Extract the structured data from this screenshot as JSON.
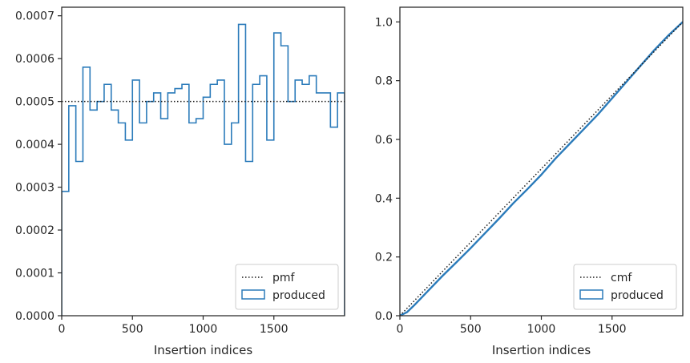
{
  "chart_data": [
    {
      "type": "line",
      "xlabel": "Insertion indices",
      "ylabel": "",
      "xlim": [
        0,
        2000
      ],
      "ylim": [
        0,
        0.00072
      ],
      "xticks": [
        0,
        500,
        1000,
        1500
      ],
      "xtick_labels": [
        "0",
        "500",
        "1000",
        "1500"
      ],
      "yticks": [
        0,
        0.0001,
        0.0002,
        0.0003,
        0.0004,
        0.0005,
        0.0006,
        0.0007
      ],
      "ytick_labels": [
        "0.0000",
        "0.0001",
        "0.0002",
        "0.0003",
        "0.0004",
        "0.0005",
        "0.0006",
        "0.0007"
      ],
      "grid": false,
      "legend": {
        "placement": "lower-right",
        "entries": [
          "pmf",
          "produced"
        ]
      },
      "series": [
        {
          "name": "pmf",
          "style": "dotted",
          "color": "#1a1a1a",
          "x": [
            0,
            2000
          ],
          "y": [
            0.0005,
            0.0005
          ]
        },
        {
          "name": "produced",
          "style": "step-histogram",
          "color": "#2b7bba",
          "bin_edges": [
            0,
            50,
            100,
            150,
            200,
            250,
            300,
            350,
            400,
            450,
            500,
            550,
            600,
            650,
            700,
            750,
            800,
            850,
            900,
            950,
            1000,
            1050,
            1100,
            1150,
            1200,
            1250,
            1300,
            1350,
            1400,
            1450,
            1500,
            1550,
            1600,
            1650,
            1700,
            1750,
            1800,
            1850,
            1900,
            1950,
            2000
          ],
          "values": [
            0.00029,
            0.00049,
            0.00036,
            0.00058,
            0.00048,
            0.0005,
            0.00054,
            0.00048,
            0.00045,
            0.00041,
            0.00055,
            0.00045,
            0.0005,
            0.00052,
            0.00046,
            0.00052,
            0.00053,
            0.00054,
            0.00045,
            0.00046,
            0.00051,
            0.00054,
            0.00055,
            0.0004,
            0.00045,
            0.00068,
            0.00036,
            0.00054,
            0.00056,
            0.00041,
            0.00066,
            0.00063,
            0.0005,
            0.00055,
            0.00054,
            0.00056,
            0.00052,
            0.00052,
            0.00044,
            0.00052
          ]
        }
      ]
    },
    {
      "type": "line",
      "xlabel": "Insertion indices",
      "ylabel": "",
      "xlim": [
        0,
        2000
      ],
      "ylim": [
        0,
        1.05
      ],
      "xticks": [
        0,
        500,
        1000,
        1500
      ],
      "xtick_labels": [
        "0",
        "500",
        "1000",
        "1500"
      ],
      "yticks": [
        0,
        0.2,
        0.4,
        0.6,
        0.8,
        1.0
      ],
      "ytick_labels": [
        "0.0",
        "0.2",
        "0.4",
        "0.6",
        "0.8",
        "1.0"
      ],
      "grid": false,
      "legend": {
        "placement": "lower-right",
        "entries": [
          "cmf",
          "produced"
        ]
      },
      "series": [
        {
          "name": "cmf",
          "style": "dotted",
          "color": "#1a1a1a",
          "x": [
            0,
            2000
          ],
          "y": [
            0,
            1.0
          ]
        },
        {
          "name": "produced",
          "style": "solid",
          "color": "#2b7bba",
          "x": [
            0,
            50,
            100,
            200,
            300,
            400,
            500,
            600,
            700,
            800,
            900,
            1000,
            1100,
            1200,
            1300,
            1400,
            1500,
            1600,
            1700,
            1800,
            1900,
            2000
          ],
          "y": [
            0,
            0.012,
            0.035,
            0.085,
            0.135,
            0.182,
            0.23,
            0.28,
            0.33,
            0.382,
            0.43,
            0.48,
            0.535,
            0.585,
            0.635,
            0.685,
            0.74,
            0.795,
            0.85,
            0.905,
            0.955,
            1.0
          ]
        }
      ]
    }
  ]
}
